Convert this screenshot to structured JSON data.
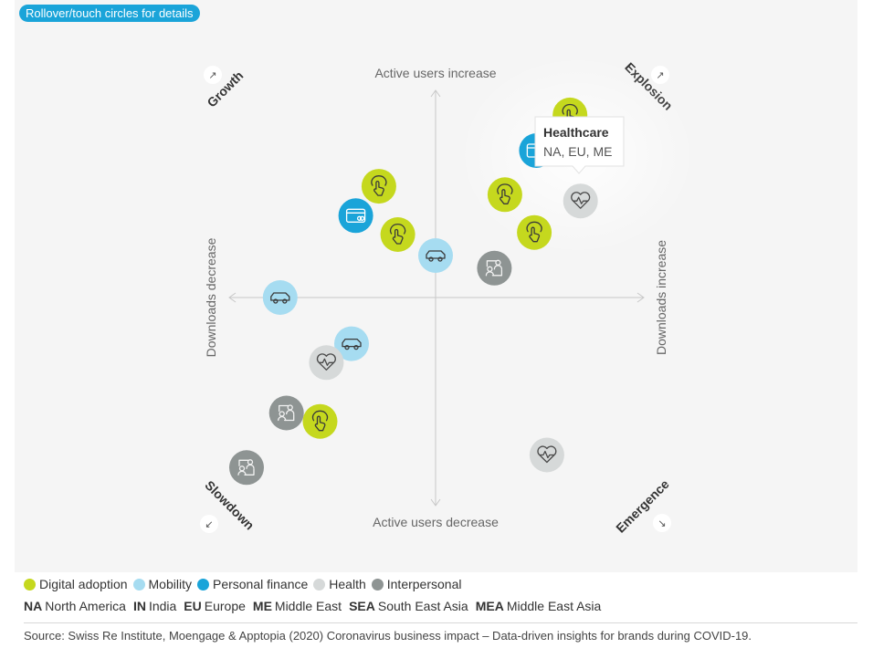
{
  "hint": "Rollover/touch circles for details",
  "tooltip": {
    "title": "Healthcare",
    "regions": "NA, EU, ME"
  },
  "legend": [
    {
      "label": "Digital adoption",
      "color": "#c5d81e"
    },
    {
      "label": "Mobility",
      "color": "#a6dcf1"
    },
    {
      "label": "Personal finance",
      "color": "#1aa4d9"
    },
    {
      "label": "Health",
      "color": "#d6d9d9"
    },
    {
      "label": "Interpersonal",
      "color": "#8e9493"
    }
  ],
  "abbreviations": [
    {
      "code": "NA",
      "name": "North America"
    },
    {
      "code": "IN",
      "name": "India"
    },
    {
      "code": "EU",
      "name": "Europe"
    },
    {
      "code": "ME",
      "name": "Middle East"
    },
    {
      "code": "SEA",
      "name": "South East Asia"
    },
    {
      "code": "MEA",
      "name": "Middle East Asia"
    }
  ],
  "source": "Source: Swiss Re Institute, Moengage & Apptopia (2020) Coronavirus business impact – Data-driven insights for brands during COVID-19.",
  "chart_data": {
    "type": "scatter",
    "title": "",
    "xlabel_left": "Downloads decrease",
    "xlabel_right": "Downloads increase",
    "ylabel_top": "Active users increase",
    "ylabel_bottom": "Active users decrease",
    "quadrants": {
      "top_left": "Growth",
      "top_right": "Explosion",
      "bottom_left": "Slowdown",
      "bottom_right": "Emergence"
    },
    "xlim": [
      -1,
      1
    ],
    "ylim": [
      -1,
      1
    ],
    "grid": false,
    "points": [
      {
        "category": "Digital adoption",
        "icon": "touch-icon",
        "x": 0.64,
        "y": 0.87
      },
      {
        "category": "Personal finance",
        "icon": "card-icon",
        "x": 0.48,
        "y": 0.7
      },
      {
        "category": "Digital adoption",
        "icon": "touch-icon",
        "x": 0.33,
        "y": 0.49
      },
      {
        "category": "Digital adoption",
        "icon": "touch-icon",
        "x": 0.47,
        "y": 0.31
      },
      {
        "category": "Health",
        "icon": "heart-icon",
        "x": 0.69,
        "y": 0.46
      },
      {
        "category": "Interpersonal",
        "icon": "people-icon",
        "x": 0.28,
        "y": 0.14
      },
      {
        "category": "Mobility",
        "icon": "car-icon",
        "x": 0.0,
        "y": 0.2
      },
      {
        "category": "Digital adoption",
        "icon": "touch-icon",
        "x": -0.27,
        "y": 0.53
      },
      {
        "category": "Personal finance",
        "icon": "card-icon",
        "x": -0.38,
        "y": 0.39
      },
      {
        "category": "Digital adoption",
        "icon": "touch-icon",
        "x": -0.18,
        "y": 0.3
      },
      {
        "category": "Mobility",
        "icon": "car-icon",
        "x": -0.74,
        "y": 0.0
      },
      {
        "category": "Mobility",
        "icon": "car-icon",
        "x": -0.4,
        "y": -0.22
      },
      {
        "category": "Health",
        "icon": "heart-icon",
        "x": -0.52,
        "y": -0.31
      },
      {
        "category": "Interpersonal",
        "icon": "people-icon",
        "x": -0.71,
        "y": -0.55
      },
      {
        "category": "Digital adoption",
        "icon": "touch-icon",
        "x": -0.55,
        "y": -0.59
      },
      {
        "category": "Interpersonal",
        "icon": "people-icon",
        "x": -0.9,
        "y": -0.81
      },
      {
        "category": "Health",
        "icon": "heart-icon",
        "x": 0.53,
        "y": -0.75
      }
    ]
  }
}
